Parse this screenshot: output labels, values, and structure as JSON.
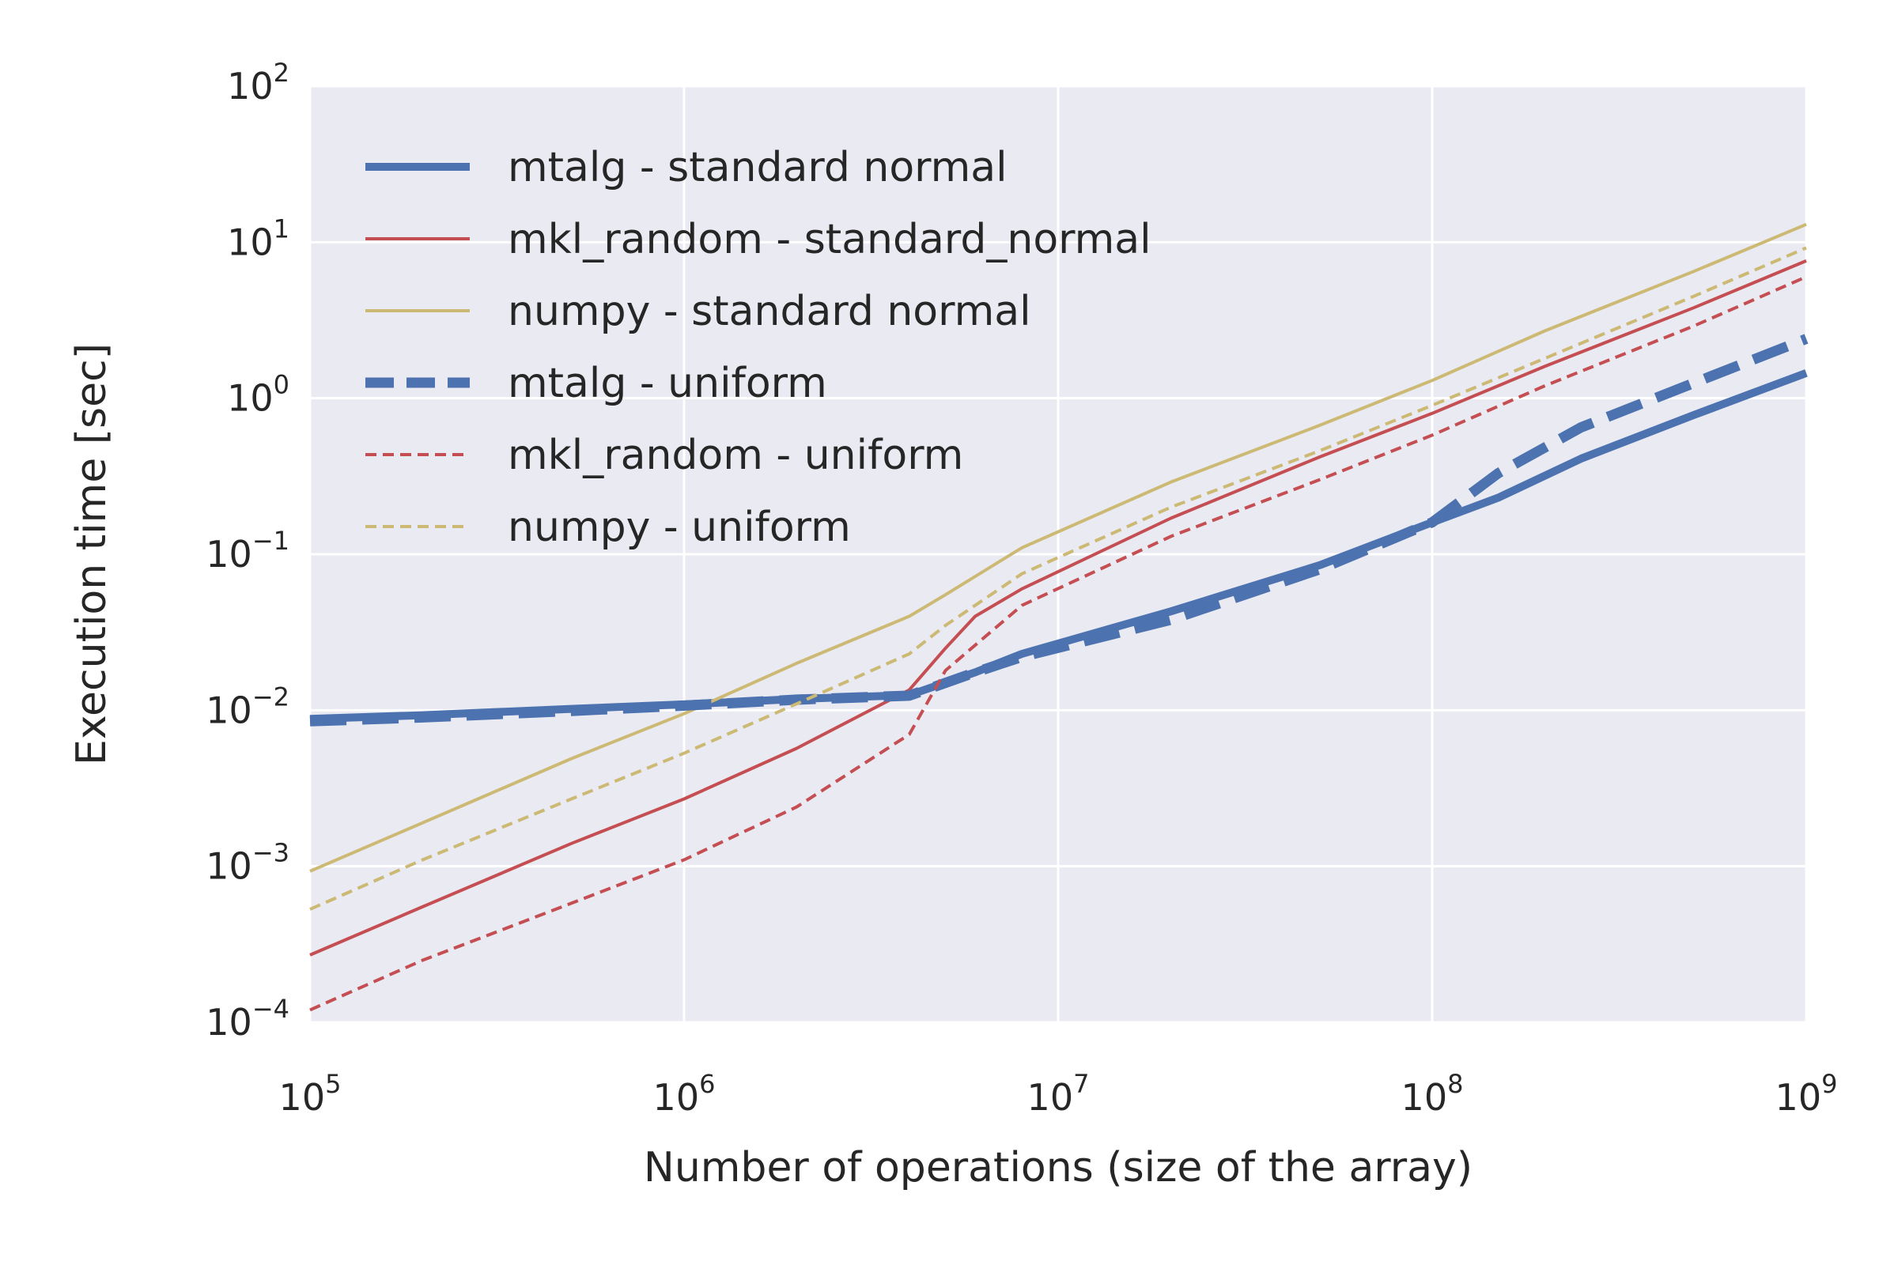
{
  "chart_data": {
    "type": "line",
    "title": "",
    "xlabel": "Number of operations (size of the array)",
    "ylabel": "Execution time [sec]",
    "xscale": "log",
    "yscale": "log",
    "xlim": [
      100000,
      1000000000
    ],
    "ylim": [
      0.0001,
      100
    ],
    "grid": true,
    "legend_position": "upper-left",
    "background_color": "#EAEAF2",
    "x_ticks": [
      {
        "base": "10",
        "exp": "5"
      },
      {
        "base": "10",
        "exp": "6"
      },
      {
        "base": "10",
        "exp": "7"
      },
      {
        "base": "10",
        "exp": "8"
      },
      {
        "base": "10",
        "exp": "9"
      }
    ],
    "y_ticks": [
      {
        "base": "10",
        "exp": "−4"
      },
      {
        "base": "10",
        "exp": "−3"
      },
      {
        "base": "10",
        "exp": "−2"
      },
      {
        "base": "10",
        "exp": "−1"
      },
      {
        "base": "10",
        "exp": "0"
      },
      {
        "base": "10",
        "exp": "1"
      },
      {
        "base": "10",
        "exp": "2"
      }
    ],
    "series": [
      {
        "name": "mtalg - standard normal",
        "color": "#4C72B0",
        "style": "solid-thick",
        "x": [
          100000,
          200000,
          500000,
          1000000,
          2000000,
          4000000,
          6000000,
          8000000,
          20000000,
          50000000,
          100000000,
          150000000,
          250000000,
          500000000,
          1000000000
        ],
        "y": [
          0.0088,
          0.0093,
          0.0102,
          0.0109,
          0.0118,
          0.0125,
          0.0175,
          0.023,
          0.043,
          0.085,
          0.16,
          0.23,
          0.41,
          0.78,
          1.45
        ]
      },
      {
        "name": "mkl_random - standard_normal",
        "color": "#C44E52",
        "style": "solid-thin",
        "x": [
          100000,
          200000,
          500000,
          1000000,
          2000000,
          4000000,
          5000000,
          6000000,
          8000000,
          20000000,
          50000000,
          100000000,
          200000000,
          500000000,
          1000000000
        ],
        "y": [
          0.00027,
          0.00055,
          0.0014,
          0.0027,
          0.0057,
          0.0135,
          0.025,
          0.04,
          0.06,
          0.17,
          0.42,
          0.8,
          1.6,
          3.8,
          7.6
        ]
      },
      {
        "name": "numpy - standard normal",
        "color": "#CCB974",
        "style": "solid-thin",
        "x": [
          100000,
          200000,
          500000,
          1000000,
          2000000,
          4000000,
          5000000,
          8000000,
          20000000,
          50000000,
          100000000,
          200000000,
          500000000,
          1000000000
        ],
        "y": [
          0.00093,
          0.0019,
          0.0049,
          0.0095,
          0.02,
          0.04,
          0.055,
          0.11,
          0.29,
          0.67,
          1.3,
          2.7,
          6.5,
          13
        ]
      },
      {
        "name": "mtalg - uniform",
        "color": "#4C72B0",
        "style": "dashed-thick",
        "x": [
          100000,
          200000,
          500000,
          1000000,
          2000000,
          4000000,
          6000000,
          8000000,
          20000000,
          50000000,
          100000000,
          150000000,
          250000000,
          500000000,
          1000000000
        ],
        "y": [
          0.0085,
          0.009,
          0.0099,
          0.0107,
          0.0117,
          0.0124,
          0.0175,
          0.022,
          0.038,
          0.08,
          0.16,
          0.33,
          0.65,
          1.25,
          2.4
        ]
      },
      {
        "name": "mkl_random - uniform",
        "color": "#C44E52",
        "style": "dashed-thin",
        "x": [
          100000,
          200000,
          500000,
          1000000,
          2000000,
          4000000,
          5000000,
          8000000,
          20000000,
          50000000,
          100000000,
          200000000,
          500000000,
          1000000000
        ],
        "y": [
          0.00012,
          0.00025,
          0.00058,
          0.0011,
          0.0024,
          0.007,
          0.018,
          0.047,
          0.13,
          0.3,
          0.58,
          1.2,
          2.9,
          6
        ]
      },
      {
        "name": "numpy - uniform",
        "color": "#CCB974",
        "style": "dashed-thin",
        "x": [
          100000,
          200000,
          500000,
          1000000,
          2000000,
          4000000,
          5000000,
          8000000,
          20000000,
          50000000,
          100000000,
          200000000,
          500000000,
          1000000000
        ],
        "y": [
          0.00053,
          0.0011,
          0.0027,
          0.0053,
          0.011,
          0.023,
          0.035,
          0.075,
          0.2,
          0.46,
          0.9,
          1.8,
          4.5,
          9.2
        ]
      }
    ]
  }
}
